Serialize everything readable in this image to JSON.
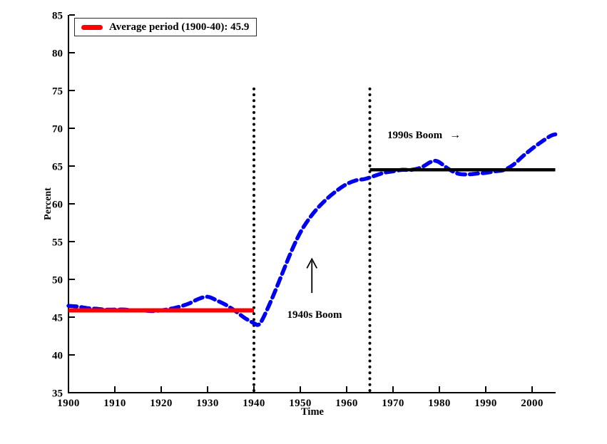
{
  "figure": {
    "ylabel": "Percent",
    "xlabel": "Time",
    "legend": {
      "items": [
        {
          "label": "Average period (1900-40): 45.9",
          "marker_color": "#ff0000"
        }
      ]
    },
    "annotations": {
      "boom1940s": {
        "text": "1940s Boom",
        "anchor_year": 1953,
        "anchor_percent": 45.0,
        "arrow": {
          "year": 1952.5,
          "from_percent": 48.2,
          "to_percent": 52.7
        }
      },
      "boom1990s": {
        "text": "1990s Boom",
        "arrow_glyph": "→",
        "anchor_year": 1968.8,
        "anchor_percent": 69.1
      }
    }
  },
  "chart_data": {
    "type": "line",
    "title": "",
    "xlabel": "Time",
    "ylabel": "Percent",
    "xlim": [
      1900,
      2005
    ],
    "ylim": [
      35,
      85
    ],
    "x_ticks": [
      1900,
      1910,
      1920,
      1930,
      1940,
      1950,
      1960,
      1970,
      1980,
      1990,
      2000
    ],
    "y_ticks": [
      35,
      40,
      45,
      50,
      55,
      60,
      65,
      70,
      75,
      80,
      85
    ],
    "grid": false,
    "legend_position": "top-left",
    "series": [
      {
        "name": "percent-series",
        "color": "#0000f0",
        "style": "dashed",
        "stroke_width": 5.5,
        "x": [
          1900,
          1902,
          1904,
          1906,
          1908,
          1910,
          1912,
          1914,
          1916,
          1918,
          1920,
          1922,
          1924,
          1926,
          1928,
          1930,
          1932,
          1934,
          1936,
          1938,
          1940,
          1941,
          1942,
          1944,
          1946,
          1948,
          1950,
          1952,
          1954,
          1956,
          1958,
          1960,
          1962,
          1964,
          1966,
          1968,
          1970,
          1972,
          1974,
          1976,
          1978,
          1979,
          1980,
          1982,
          1984,
          1986,
          1988,
          1990,
          1992,
          1994,
          1996,
          1998,
          2000,
          2002,
          2004,
          2005
        ],
        "y": [
          46.5,
          46.4,
          46.2,
          46.1,
          46.0,
          46.0,
          46.0,
          45.9,
          45.9,
          45.8,
          45.9,
          46.1,
          46.4,
          46.8,
          47.4,
          47.7,
          47.2,
          46.6,
          45.8,
          44.9,
          44.2,
          44.0,
          44.9,
          47.6,
          50.6,
          53.6,
          56.2,
          58.1,
          59.6,
          60.8,
          61.8,
          62.6,
          63.1,
          63.3,
          63.7,
          64.1,
          64.3,
          64.5,
          64.5,
          64.8,
          65.5,
          65.7,
          65.5,
          64.6,
          64.0,
          63.9,
          64.0,
          64.1,
          64.3,
          64.5,
          65.2,
          66.3,
          67.3,
          68.2,
          69.0,
          69.2
        ]
      },
      {
        "name": "average-1900-40",
        "label": "Average period (1900-40): 45.9",
        "color": "#ff0000",
        "style": "solid",
        "stroke_width": 6,
        "x": [
          1900,
          1940
        ],
        "y": [
          45.9,
          45.9
        ]
      },
      {
        "name": "average-1965-2005",
        "color": "#000000",
        "style": "solid",
        "stroke_width": 4.5,
        "x": [
          1965,
          2005
        ],
        "y": [
          64.5,
          64.5
        ]
      }
    ],
    "vlines": [
      {
        "x": 1940,
        "from": 35,
        "to": 75.3,
        "style": "dotted",
        "color": "#000000"
      },
      {
        "x": 1965,
        "from": 35,
        "to": 75.3,
        "style": "dotted",
        "color": "#000000"
      }
    ]
  }
}
